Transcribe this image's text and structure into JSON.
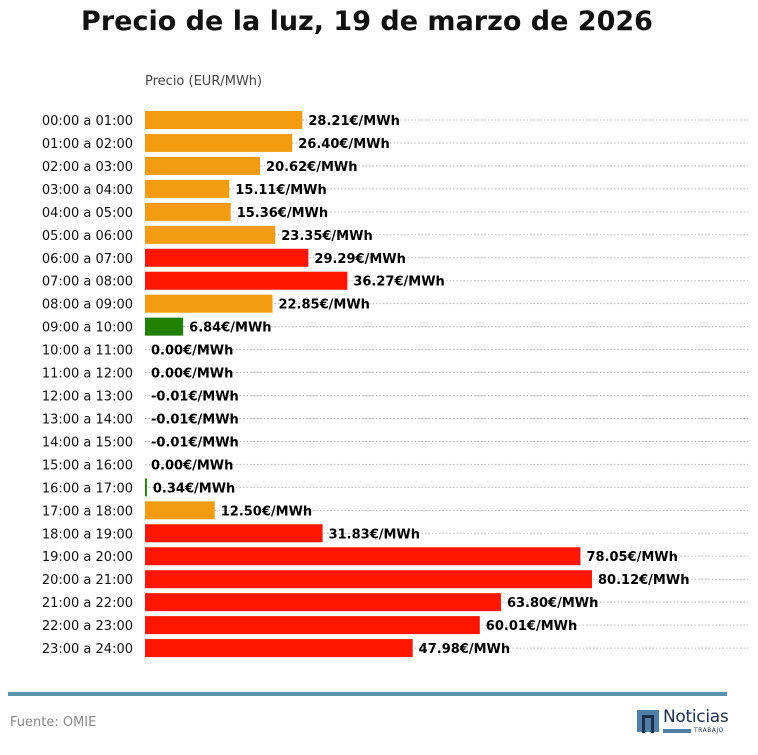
{
  "chart_data": {
    "type": "bar",
    "orientation": "horizontal",
    "title": "Precio de la luz, 19 de marzo de 2026",
    "xlabel": "Precio (EUR/MWh)",
    "ylabel": "",
    "value_suffix": "€/MWh",
    "grid": "horizontal dotted",
    "categories": [
      "00:00 a 01:00",
      "01:00 a 02:00",
      "02:00 a 03:00",
      "03:00 a 04:00",
      "04:00 a 05:00",
      "05:00 a 06:00",
      "06:00 a 07:00",
      "07:00 a 08:00",
      "08:00 a 09:00",
      "09:00 a 10:00",
      "10:00 a 11:00",
      "11:00 a 12:00",
      "12:00 a 13:00",
      "13:00 a 14:00",
      "14:00 a 15:00",
      "15:00 a 16:00",
      "16:00 a 17:00",
      "17:00 a 18:00",
      "18:00 a 19:00",
      "19:00 a 20:00",
      "20:00 a 21:00",
      "21:00 a 22:00",
      "22:00 a 23:00",
      "23:00 a 24:00"
    ],
    "values": [
      28.21,
      26.4,
      20.62,
      15.11,
      15.36,
      23.35,
      29.29,
      36.27,
      22.85,
      6.84,
      0.0,
      0.0,
      -0.01,
      -0.01,
      -0.01,
      0.0,
      0.34,
      12.5,
      31.83,
      78.05,
      80.12,
      63.8,
      60.01,
      47.98
    ],
    "levels": [
      "medium",
      "medium",
      "medium",
      "medium",
      "medium",
      "medium",
      "high",
      "high",
      "medium",
      "low",
      "low",
      "low",
      "low",
      "low",
      "low",
      "low",
      "low",
      "medium",
      "high",
      "high",
      "high",
      "high",
      "high",
      "high"
    ],
    "colors": {
      "low": "#218000",
      "medium": "#f39c12",
      "high": "#fe1600"
    },
    "xlim": [
      0,
      80.12
    ]
  },
  "footer": {
    "source": "Fuente: OMIE"
  },
  "logo": {
    "word": "Noticias",
    "sub": "TRABAJO"
  }
}
